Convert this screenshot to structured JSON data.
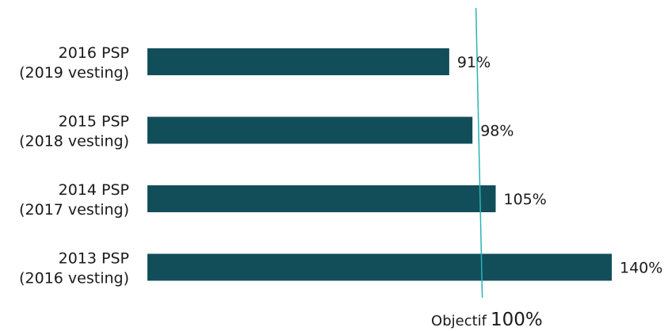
{
  "chart_data": {
    "type": "bar",
    "orientation": "horizontal",
    "categories": [
      [
        "2016 PSP",
        "(2019 vesting)"
      ],
      [
        "2015 PSP",
        "(2018 vesting)"
      ],
      [
        "2014 PSP",
        "(2017 vesting)"
      ],
      [
        "2013 PSP",
        "(2016 vesting)"
      ]
    ],
    "values": [
      91,
      98,
      105,
      140
    ],
    "value_labels": [
      "91%",
      "98%",
      "105%",
      "140%"
    ],
    "xlim": [
      0,
      140
    ],
    "grid": false,
    "bar_color": "#124e5a",
    "reference_line": {
      "value": 100,
      "label": "Objectif",
      "value_label": "100%",
      "color": "#2ab3b8"
    }
  }
}
